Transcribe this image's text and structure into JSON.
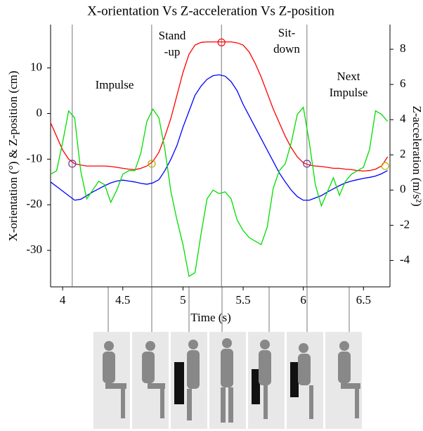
{
  "chart_data": {
    "type": "line",
    "title": "X-orientation Vs Z-acceleration Vs Z-position",
    "x_label": "Time (s)",
    "y_label": "X-orientation (°) & Z-position (cm)",
    "y2_label": "Z-acceleration (m/s²)",
    "x": [
      3.9,
      3.95,
      4.0,
      4.05,
      4.1,
      4.15,
      4.2,
      4.25,
      4.3,
      4.35,
      4.4,
      4.45,
      4.5,
      4.55,
      4.6,
      4.65,
      4.7,
      4.75,
      4.8,
      4.85,
      4.9,
      4.95,
      5.0,
      5.05,
      5.1,
      5.15,
      5.2,
      5.25,
      5.3,
      5.35,
      5.4,
      5.45,
      5.5,
      5.55,
      5.6,
      5.65,
      5.7,
      5.75,
      5.8,
      5.85,
      5.9,
      5.95,
      6.0,
      6.05,
      6.1,
      6.15,
      6.2,
      6.25,
      6.3,
      6.35,
      6.4,
      6.45,
      6.5,
      6.55,
      6.6,
      6.65,
      6.7
    ],
    "series": [
      {
        "color": "#ff0000",
        "values": [
          -2,
          -5,
          -8,
          -10,
          -11,
          -11.3,
          -11.5,
          -11.5,
          -11.5,
          -11.5,
          -11.6,
          -11.8,
          -12,
          -12.2,
          -12.3,
          -12,
          -11.5,
          -10.5,
          -8.5,
          -5,
          -1,
          4,
          9,
          13,
          15,
          15.6,
          15.7,
          15.7,
          15.7,
          15.7,
          15.7,
          15.5,
          15,
          13.5,
          11,
          8,
          4.5,
          1,
          -2,
          -5,
          -7.5,
          -9.5,
          -10.8,
          -11.3,
          -11.5,
          -11.6,
          -11.8,
          -12,
          -12,
          -12.2,
          -12.3,
          -12.5,
          -12.6,
          -12.5,
          -12.2,
          -11.5,
          -9.5
        ]
      },
      {
        "color": "#0000ff",
        "values": [
          -15,
          -16,
          -17,
          -18,
          -19,
          -18.8,
          -18,
          -17.2,
          -16.5,
          -15.8,
          -15.2,
          -14.8,
          -14.6,
          -14.8,
          -15,
          -15.3,
          -15.5,
          -15.2,
          -14.5,
          -12.5,
          -10,
          -7,
          -3,
          0.5,
          4,
          6,
          7.5,
          8.3,
          8.5,
          8.2,
          7,
          5,
          2,
          -0.5,
          -3,
          -5.5,
          -8,
          -10.5,
          -13,
          -15,
          -16.8,
          -18.2,
          -19,
          -19,
          -18.5,
          -18,
          -17.2,
          -16.5,
          -15.8,
          -15.2,
          -14.8,
          -14.5,
          -14.2,
          -14,
          -13.7,
          -13.2,
          -12.5
        ]
      },
      {
        "color": "#00dd00",
        "axis": "y2",
        "values": [
          0.9,
          1.1,
          2.7,
          4.5,
          4.1,
          1.1,
          -0.5,
          0,
          0.5,
          0.3,
          -0.7,
          0,
          0.9,
          1.1,
          1.1,
          2.1,
          3.9,
          4.6,
          4.1,
          2.3,
          -0.1,
          -1.7,
          -3.1,
          -4.9,
          -4.7,
          -2.5,
          -0.5,
          0,
          -0.2,
          -0.1,
          -0.5,
          -1.7,
          -2.3,
          -2.7,
          -2.9,
          -3.1,
          -2.1,
          0.1,
          1.1,
          1.5,
          2.7,
          4.3,
          4.7,
          2.7,
          0.3,
          -0.9,
          -0.1,
          0.7,
          -0.3,
          0.5,
          0.9,
          1.1,
          1.3,
          2.3,
          4.5,
          4.3,
          3.9
        ]
      }
    ],
    "markers": [
      {
        "x": 4.08,
        "y": -11,
        "color": "#7030a0"
      },
      {
        "x": 4.74,
        "y": -11,
        "color": "#b0b000"
      },
      {
        "x": 5.32,
        "y": 15.6,
        "color": "#ff0000"
      },
      {
        "x": 6.03,
        "y": -11,
        "color": "#7030a0"
      },
      {
        "x": 6.68,
        "y": -11.5,
        "color": "#b0b000"
      }
    ],
    "vlines": [
      4.08,
      4.74,
      5.32,
      6.03
    ],
    "annotations": [
      [
        "Impulse"
      ],
      [
        "Stand",
        "-up"
      ],
      [
        "Sit-",
        "down"
      ],
      [
        "Next",
        "Impulse"
      ]
    ],
    "xlim": [
      3.9,
      6.72
    ],
    "xticks": [
      4,
      4.5,
      5,
      5.5,
      6,
      6.5
    ],
    "ylim": [
      -38,
      19.5
    ],
    "yticks": [
      -30,
      -20,
      -10,
      0,
      10
    ],
    "y2lim": [
      -5.5,
      9.4
    ],
    "y2ticks": [
      -4,
      -2,
      0,
      2,
      4,
      6,
      8
    ]
  }
}
